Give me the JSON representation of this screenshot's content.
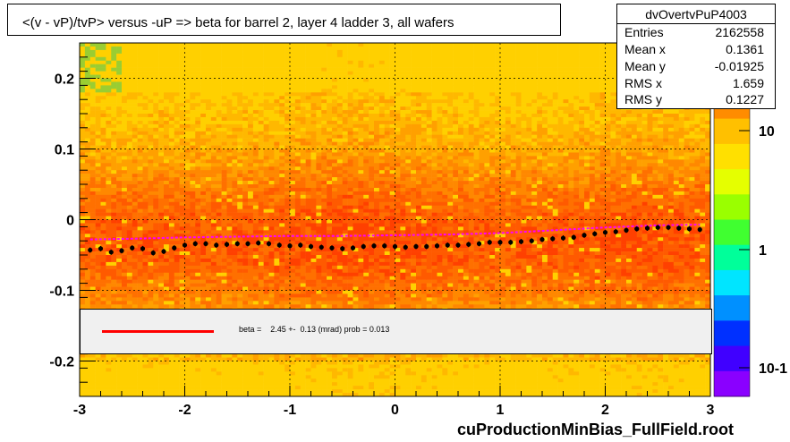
{
  "title": "<(v - vP)/tvP> versus  -uP => beta for barrel 2, layer 4 ladder 3, all wafers",
  "stats": {
    "name": "dvOvertvPuP4003",
    "rows": [
      {
        "label": "Entries",
        "value": "2162558"
      },
      {
        "label": "Mean x",
        "value": "0.1361"
      },
      {
        "label": "Mean y",
        "value": "-0.01925"
      },
      {
        "label": "RMS x",
        "value": "1.659"
      },
      {
        "label": "RMS y",
        "value": "0.1227"
      }
    ]
  },
  "legend": {
    "fit_text": "beta =    2.45 +-  0.13 (mrad) prob = 0.013",
    "line_color": "#ff0000"
  },
  "x_title": "cuProductionMinBias_FullField.root",
  "colors": {
    "profile_points": "#000000",
    "fit_curve": "#ff00ff",
    "legend_line": "#ff0000",
    "grid": "#000000"
  },
  "chart_data": {
    "type": "heatmap",
    "title": "<(v - vP)/tvP> versus  -uP => beta for barrel 2, layer 4 ladder 3, all wafers",
    "xlabel": "cuProductionMinBias_FullField.root",
    "ylabel": "",
    "xlim": [
      -3,
      3
    ],
    "ylim": [
      -0.25,
      0.25
    ],
    "x_ticks": [
      "-3",
      "-2",
      "-1",
      "0",
      "1",
      "2",
      "3"
    ],
    "y_ticks": [
      "-0.2",
      "-0.1",
      "0",
      "0.1",
      "0.2"
    ],
    "grid": true,
    "z_scale": "log",
    "colorbar_ticks": [
      "10",
      "1",
      "10-1"
    ],
    "profile": {
      "x": [
        -2.9,
        -2.8,
        -2.7,
        -2.6,
        -2.5,
        -2.4,
        -2.3,
        -2.2,
        -2.1,
        -2.0,
        -1.9,
        -1.8,
        -1.7,
        -1.6,
        -1.5,
        -1.4,
        -1.3,
        -1.2,
        -1.1,
        -1.0,
        -0.9,
        -0.8,
        -0.7,
        -0.6,
        -0.5,
        -0.4,
        -0.3,
        -0.2,
        -0.1,
        0.0,
        0.1,
        0.2,
        0.3,
        0.4,
        0.5,
        0.6,
        0.7,
        0.8,
        0.9,
        1.0,
        1.1,
        1.2,
        1.3,
        1.4,
        1.5,
        1.6,
        1.7,
        1.8,
        1.9,
        2.0,
        2.1,
        2.2,
        2.3,
        2.4,
        2.5,
        2.6,
        2.7,
        2.8,
        2.9
      ],
      "y": [
        -0.043,
        -0.041,
        -0.046,
        -0.044,
        -0.04,
        -0.041,
        -0.047,
        -0.045,
        -0.04,
        -0.036,
        -0.034,
        -0.034,
        -0.036,
        -0.035,
        -0.034,
        -0.034,
        -0.033,
        -0.034,
        -0.036,
        -0.037,
        -0.036,
        -0.038,
        -0.039,
        -0.04,
        -0.041,
        -0.04,
        -0.038,
        -0.037,
        -0.037,
        -0.038,
        -0.039,
        -0.038,
        -0.038,
        -0.037,
        -0.036,
        -0.036,
        -0.035,
        -0.034,
        -0.032,
        -0.032,
        -0.032,
        -0.031,
        -0.03,
        -0.028,
        -0.027,
        -0.026,
        -0.025,
        -0.022,
        -0.02,
        -0.018,
        -0.017,
        -0.015,
        -0.013,
        -0.012,
        -0.011,
        -0.011,
        -0.012,
        -0.013,
        -0.014
      ]
    },
    "fit": {
      "x": [
        -2.9,
        -2.5,
        -2.0,
        -1.5,
        -1.0,
        -0.5,
        0.0,
        0.5,
        1.0,
        1.5,
        2.0,
        2.5,
        2.9
      ],
      "y": [
        -0.028,
        -0.027,
        -0.025,
        -0.024,
        -0.023,
        -0.023,
        -0.022,
        -0.021,
        -0.019,
        -0.015,
        -0.011,
        -0.008,
        -0.007
      ]
    }
  }
}
